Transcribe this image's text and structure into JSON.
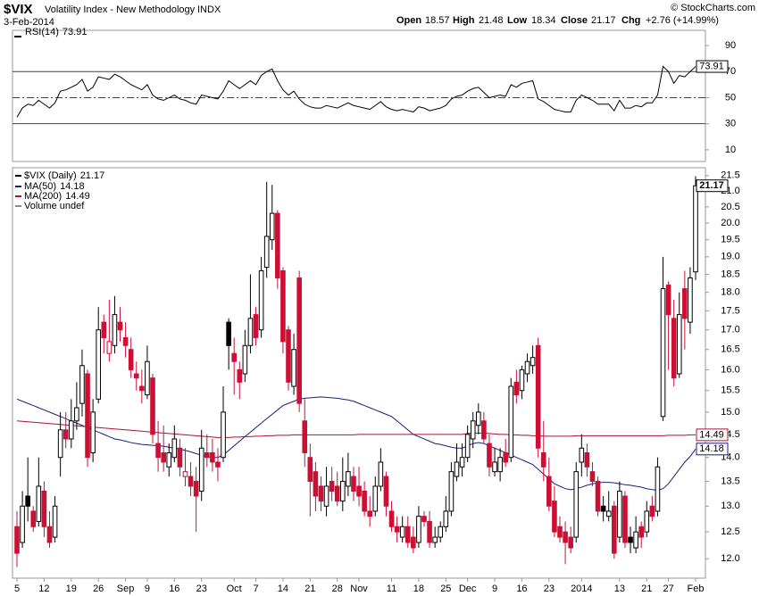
{
  "header": {
    "symbol": "$VIX",
    "name": "Volatility Index - New Methodology",
    "exchange": "INDX",
    "date": "3-Feb-2014",
    "source": "© StockCharts.com",
    "open": "Open",
    "high": "High",
    "low": "Low",
    "close": "Close",
    "change": "Chg",
    "change_value": "+2.76 (+14.99%)"
  },
  "chart_data": [
    {
      "type": "line",
      "name": "RSI(14)",
      "color": "#000000",
      "ylim": [
        1.7,
        101
      ],
      "yticks": [
        10,
        30,
        50,
        70,
        90
      ],
      "ref_lines": [
        30,
        70
      ],
      "midline": 50,
      "values": [
        35,
        42,
        45,
        44,
        48,
        45,
        42,
        46,
        55,
        56,
        58,
        60,
        64,
        55,
        58,
        66,
        65,
        64,
        68,
        66,
        63,
        60,
        58,
        56,
        60,
        52,
        49,
        48,
        50,
        52,
        49,
        48,
        46,
        45,
        52,
        51,
        50,
        49,
        55,
        63,
        60,
        57,
        60,
        63,
        60,
        67,
        70,
        72,
        63,
        56,
        52,
        55,
        49,
        45,
        43,
        42,
        42,
        44,
        43,
        42,
        44,
        46,
        44,
        43,
        42,
        41,
        44,
        47,
        43,
        41,
        40,
        41,
        40,
        39,
        43,
        42,
        40,
        41,
        42,
        44,
        49,
        51,
        52,
        55,
        57,
        58,
        54,
        50,
        51,
        52,
        51,
        60,
        58,
        61,
        62,
        63,
        49,
        47,
        44,
        41,
        40,
        39,
        39,
        48,
        52,
        50,
        48,
        45,
        45,
        45,
        40,
        48,
        42,
        42,
        44,
        43,
        46,
        46,
        52,
        74,
        70,
        61,
        67,
        66,
        70,
        73.91
      ]
    },
    {
      "type": "candlestick",
      "name": "$VIX (Daily)",
      "up_color": "#000000",
      "down_color": "#cc0f35",
      "log_scale": true,
      "ylim": [
        11.65,
        21.7
      ],
      "yticks": [
        {
          "value": 12,
          "label": "12.0"
        },
        12.5,
        {
          "value": 13,
          "label": "13.0"
        },
        13.5,
        {
          "value": 14,
          "label": "14.0"
        },
        14.5,
        {
          "value": 15,
          "label": "15.0"
        },
        15.5,
        {
          "value": 16,
          "label": "16.0"
        },
        16.5,
        {
          "value": 17,
          "label": "17.0"
        },
        17.5,
        {
          "value": 18,
          "label": "18.0"
        },
        18.5,
        {
          "value": 19,
          "label": "19.0"
        },
        19.5,
        {
          "value": 20,
          "label": "20.0"
        },
        20.5,
        {
          "value": 21,
          "label": "21.0"
        },
        21.5
      ],
      "categories": [
        "5",
        null,
        null,
        null,
        null,
        "12",
        null,
        null,
        null,
        null,
        "19",
        null,
        null,
        null,
        null,
        "26",
        null,
        null,
        null,
        null,
        "Sep",
        null,
        null,
        null,
        "9",
        null,
        null,
        null,
        null,
        "16",
        null,
        null,
        null,
        null,
        "23",
        null,
        null,
        null,
        null,
        null,
        "Oct",
        null,
        null,
        null,
        "7",
        null,
        null,
        null,
        null,
        "14",
        null,
        null,
        null,
        null,
        "21",
        null,
        null,
        null,
        null,
        "28",
        null,
        null,
        null,
        "Nov",
        null,
        null,
        null,
        null,
        null,
        "11",
        null,
        null,
        null,
        null,
        "18",
        null,
        null,
        null,
        null,
        "25",
        null,
        null,
        null,
        "Dec",
        null,
        null,
        null,
        null,
        "9",
        null,
        null,
        null,
        null,
        "16",
        null,
        null,
        null,
        null,
        "23",
        null,
        null,
        null,
        null,
        null,
        "2014",
        null,
        null,
        null,
        null,
        null,
        null,
        "13",
        null,
        null,
        null,
        null,
        "21",
        null,
        null,
        null,
        "27",
        null,
        null,
        null,
        null,
        "Feb"
      ],
      "open": [
        12.6,
        12.3,
        13.2,
        12.9,
        12.7,
        13.3,
        12.6,
        12.4,
        14.0,
        14.6,
        14.4,
        14.8,
        15.2,
        15.9,
        14.1,
        15.3,
        17.2,
        16.4,
        16.6,
        17.2,
        16.8,
        16.5,
        15.9,
        15.6,
        15.4,
        15.8,
        14.3,
        14.1,
        13.8,
        14.0,
        14.2,
        13.6,
        13.6,
        13.5,
        13.3,
        14.1,
        14.1,
        13.9,
        14.0,
        17.2,
        16.4,
        16.0,
        15.9,
        16.6,
        17.4,
        17.0,
        18.7,
        19.5,
        20.3,
        18.6,
        17.0,
        15.6,
        18.4,
        14.8,
        14.0,
        13.7,
        13.4,
        13.0,
        13.5,
        13.4,
        13.1,
        13.4,
        13.6,
        13.4,
        13.3,
        12.9,
        12.9,
        13.4,
        13.6,
        12.9,
        12.6,
        12.4,
        12.6,
        12.4,
        12.3,
        12.8,
        12.7,
        12.3,
        12.4,
        12.6,
        12.9,
        13.6,
        13.8,
        14.0,
        14.4,
        14.7,
        14.8,
        14.3,
        13.7,
        13.7,
        14.1,
        14.0,
        15.7,
        15.5,
        15.9,
        16.1,
        16.6,
        14.1,
        13.6,
        13.1,
        12.6,
        12.5,
        12.4,
        12.4,
        13.9,
        14.1,
        13.7,
        13.5,
        13.0,
        12.8,
        13.0,
        12.4,
        13.2,
        12.4,
        12.2,
        12.6,
        12.5,
        13.0,
        12.9,
        14.9,
        18.2,
        17.3,
        15.9,
        18.1,
        17.2,
        18.57
      ],
      "high": [
        12.9,
        13.3,
        14.0,
        13.0,
        14.0,
        13.5,
        12.9,
        13.2,
        15.0,
        15.0,
        15.3,
        15.7,
        16.5,
        16.0,
        15.3,
        17.6,
        17.4,
        17.8,
        17.9,
        17.6,
        17.2,
        16.8,
        16.2,
        16.0,
        16.6,
        15.9,
        14.8,
        14.7,
        14.3,
        14.7,
        14.4,
        14.2,
        13.9,
        13.8,
        14.6,
        14.5,
        14.4,
        14.2,
        15.6,
        17.3,
        16.8,
        16.2,
        17.0,
        18.5,
        17.6,
        19.0,
        21.3,
        21.2,
        20.4,
        18.7,
        17.1,
        16.9,
        18.6,
        15.3,
        14.3,
        13.9,
        13.6,
        13.8,
        13.8,
        13.7,
        14.0,
        14.1,
        13.8,
        13.8,
        13.5,
        13.2,
        13.6,
        14.2,
        13.7,
        13.1,
        12.8,
        12.8,
        12.8,
        12.6,
        13.0,
        12.9,
        12.9,
        12.6,
        12.7,
        13.2,
        13.9,
        14.3,
        14.3,
        14.7,
        15.0,
        15.2,
        15.0,
        14.5,
        14.2,
        14.2,
        14.4,
        15.8,
        16.0,
        16.1,
        16.4,
        16.6,
        16.8,
        14.8,
        14.0,
        13.4,
        12.8,
        12.7,
        12.6,
        13.9,
        14.5,
        14.3,
        13.9,
        13.6,
        13.2,
        13.3,
        13.1,
        13.5,
        13.3,
        12.6,
        12.8,
        12.7,
        13.1,
        13.2,
        14.0,
        19.0,
        18.3,
        17.8,
        18.0,
        18.6,
        18.7,
        21.48
      ],
      "low": [
        11.85,
        12.2,
        12.7,
        12.5,
        12.6,
        12.4,
        12.2,
        12.3,
        13.6,
        14.2,
        14.2,
        14.6,
        14.9,
        13.8,
        13.9,
        15.2,
        16.4,
        16.2,
        16.4,
        16.7,
        16.3,
        15.8,
        15.5,
        15.2,
        15.3,
        14.3,
        13.7,
        13.7,
        13.6,
        13.9,
        13.6,
        13.4,
        13.2,
        12.5,
        13.1,
        13.8,
        13.7,
        13.5,
        13.9,
        16.0,
        15.4,
        15.3,
        15.7,
        16.4,
        16.6,
        16.8,
        18.4,
        19.2,
        18.1,
        16.4,
        15.5,
        15.4,
        15.0,
        13.8,
        12.8,
        12.9,
        12.9,
        12.8,
        13.1,
        13.0,
        12.9,
        13.2,
        13.1,
        13.0,
        12.8,
        12.6,
        12.8,
        13.3,
        12.8,
        12.5,
        12.3,
        12.3,
        12.2,
        12.1,
        12.2,
        12.6,
        12.2,
        12.2,
        12.3,
        12.5,
        12.8,
        13.5,
        13.6,
        13.9,
        14.2,
        14.5,
        14.3,
        13.6,
        13.6,
        13.5,
        13.8,
        13.9,
        15.2,
        15.3,
        15.7,
        15.9,
        14.0,
        13.5,
        12.9,
        12.4,
        12.3,
        11.9,
        12.1,
        12.3,
        13.6,
        13.6,
        13.4,
        12.8,
        12.7,
        12.7,
        12.0,
        12.3,
        12.2,
        12.1,
        12.1,
        12.2,
        12.4,
        12.7,
        12.8,
        14.8,
        16.0,
        15.6,
        15.8,
        16.5,
        16.9,
        18.34
      ],
      "close": [
        12.1,
        13.0,
        13.0,
        12.6,
        13.4,
        12.6,
        12.3,
        13.0,
        14.6,
        14.4,
        14.8,
        15.1,
        16.1,
        14.0,
        15.0,
        17.0,
        16.8,
        16.7,
        17.4,
        17.0,
        16.6,
        16.0,
        15.8,
        15.5,
        16.2,
        14.5,
        14.0,
        13.9,
        14.1,
        14.4,
        13.8,
        13.7,
        13.4,
        13.2,
        14.2,
        14.0,
        13.9,
        13.8,
        15.0,
        16.6,
        16.2,
        15.7,
        16.6,
        17.3,
        16.8,
        18.6,
        19.6,
        20.3,
        18.4,
        16.7,
        15.7,
        16.5,
        15.2,
        14.1,
        13.5,
        13.2,
        13.1,
        13.4,
        13.3,
        13.1,
        13.5,
        13.7,
        13.3,
        13.2,
        12.9,
        12.8,
        13.4,
        13.9,
        13.0,
        12.6,
        12.5,
        12.6,
        12.3,
        12.2,
        12.8,
        12.7,
        12.3,
        12.4,
        12.6,
        12.9,
        13.7,
        13.9,
        14.0,
        14.5,
        14.8,
        15.0,
        14.4,
        13.8,
        13.9,
        14.0,
        13.9,
        15.6,
        15.4,
        16.0,
        16.2,
        16.3,
        14.2,
        13.8,
        13.0,
        12.5,
        12.4,
        12.3,
        12.2,
        13.7,
        14.2,
        13.8,
        13.5,
        12.9,
        12.9,
        12.9,
        12.1,
        13.3,
        12.3,
        12.3,
        12.5,
        12.4,
        12.9,
        12.8,
        13.8,
        18.1,
        17.4,
        15.8,
        17.4,
        17.3,
        18.4,
        21.17
      ],
      "overlays": [
        {
          "name": "MA(50)",
          "color": "#1c1c78",
          "values": [
            15.3,
            15.25,
            15.2,
            15.15,
            15.1,
            15.05,
            15.0,
            14.95,
            14.9,
            14.85,
            14.8,
            14.75,
            14.7,
            14.65,
            14.6,
            14.55,
            14.5,
            14.45,
            14.4,
            14.38,
            14.35,
            14.32,
            14.3,
            14.28,
            14.27,
            14.26,
            14.25,
            14.24,
            14.22,
            14.2,
            14.18,
            14.15,
            14.12,
            14.08,
            14.05,
            14.02,
            14.0,
            14.0,
            14.05,
            14.15,
            14.25,
            14.35,
            14.45,
            14.55,
            14.65,
            14.75,
            14.85,
            14.95,
            15.05,
            15.15,
            15.2,
            15.25,
            15.3,
            15.32,
            15.33,
            15.34,
            15.35,
            15.34,
            15.33,
            15.32,
            15.3,
            15.28,
            15.25,
            15.2,
            15.15,
            15.1,
            15.05,
            15.0,
            14.95,
            14.9,
            14.8,
            14.7,
            14.6,
            14.5,
            14.45,
            14.4,
            14.35,
            14.3,
            14.28,
            14.25,
            14.22,
            14.2,
            14.2,
            14.25,
            14.3,
            14.32,
            14.3,
            14.25,
            14.2,
            14.15,
            14.1,
            14.05,
            14.0,
            13.95,
            13.9,
            13.85,
            13.75,
            13.65,
            13.55,
            13.45,
            13.4,
            13.35,
            13.33,
            13.35,
            13.38,
            13.42,
            13.45,
            13.47,
            13.48,
            13.48,
            13.47,
            13.45,
            13.43,
            13.42,
            13.4,
            13.38,
            13.35,
            13.33,
            13.32,
            13.35,
            13.45,
            13.6,
            13.75,
            13.9,
            14.02,
            14.18
          ]
        },
        {
          "name": "MA(200)",
          "color": "#b01030",
          "values": [
            14.8,
            14.79,
            14.78,
            14.77,
            14.76,
            14.75,
            14.74,
            14.73,
            14.72,
            14.71,
            14.7,
            14.69,
            14.68,
            14.67,
            14.66,
            14.65,
            14.64,
            14.63,
            14.62,
            14.61,
            14.6,
            14.59,
            14.58,
            14.57,
            14.56,
            14.55,
            14.54,
            14.53,
            14.52,
            14.51,
            14.5,
            14.49,
            14.48,
            14.47,
            14.46,
            14.45,
            14.44,
            14.43,
            14.43,
            14.43,
            14.44,
            14.44,
            14.45,
            14.45,
            14.46,
            14.46,
            14.47,
            14.47,
            14.48,
            14.48,
            14.48,
            14.49,
            14.49,
            14.49,
            14.49,
            14.49,
            14.49,
            14.49,
            14.49,
            14.49,
            14.49,
            14.49,
            14.49,
            14.5,
            14.5,
            14.5,
            14.5,
            14.5,
            14.5,
            14.5,
            14.5,
            14.5,
            14.5,
            14.5,
            14.5,
            14.5,
            14.5,
            14.5,
            14.5,
            14.5,
            14.5,
            14.5,
            14.5,
            14.52,
            14.53,
            14.53,
            14.53,
            14.52,
            14.51,
            14.5,
            14.5,
            14.49,
            14.49,
            14.48,
            14.48,
            14.47,
            14.47,
            14.46,
            14.46,
            14.46,
            14.46,
            14.46,
            14.46,
            14.47,
            14.47,
            14.47,
            14.47,
            14.47,
            14.47,
            14.47,
            14.47,
            14.47,
            14.47,
            14.47,
            14.47,
            14.47,
            14.47,
            14.47,
            14.47,
            14.47,
            14.48,
            14.48,
            14.48,
            14.48,
            14.49,
            14.49
          ]
        }
      ],
      "volume_legend": "Volume undef"
    }
  ]
}
